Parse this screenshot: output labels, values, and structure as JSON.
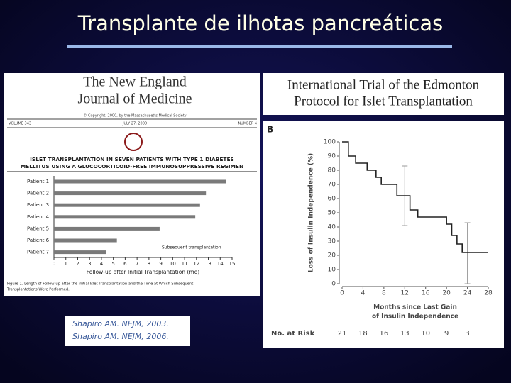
{
  "slide_title": "Transplante de ilhotas pancreáticas",
  "nejm": {
    "masthead": [
      "The New England",
      "Journal of Medicine"
    ],
    "copyright": "© Copyright, 2000, by the Massachusetts Medical Society",
    "volume": "VOLUME 343",
    "date": "JULY 27, 2000",
    "number": "NUMBER 4",
    "article_title": [
      "ISLET TRANSPLANTATION IN SEVEN PATIENTS WITH TYPE 1 DIABETES",
      "MELLITUS USING A GLUCOCORTICOID-FREE IMMUNOSUPPRESSIVE REGIMEN"
    ],
    "caption": [
      "Figure 1. Length of Follow-up after the Initial Islet Transplantation and the Time at Which Subsequent",
      "Transplantations Were Performed."
    ]
  },
  "citations": [
    "Shapiro AM. NEJM, 2003.",
    "Shapiro AM. NEJM, 2006."
  ],
  "trial_title": [
    "International Trial of the Edmonton",
    "Protocol for Islet Transplantation"
  ],
  "chart_data": [
    {
      "type": "hbar",
      "categories": [
        "Patient 1",
        "Patient 2",
        "Patient 3",
        "Patient 4",
        "Patient 5",
        "Patient 6",
        "Patient 7"
      ],
      "values": [
        14.5,
        12.8,
        12.3,
        11.9,
        8.9,
        5.3,
        4.4
      ],
      "color": "#7a7a7a",
      "xlim": [
        0,
        15
      ],
      "xticks": [
        0,
        1,
        2,
        3,
        4,
        5,
        6,
        7,
        8,
        9,
        10,
        11,
        12,
        13,
        14,
        15
      ],
      "xlabel": "Follow-up after Initial Transplantation (mo)",
      "annotation": "Subsequent transplantation"
    },
    {
      "type": "step",
      "panel": "B",
      "series": [
        {
          "color": "#222222",
          "x": [
            0,
            1.2,
            1.2,
            2.6,
            2.6,
            4.8,
            4.8,
            6.5,
            6.5,
            7.5,
            7.5,
            10.5,
            10.5,
            13,
            13,
            14.5,
            14.5,
            20,
            20,
            21,
            21,
            22,
            22,
            23,
            23,
            28
          ],
          "values": [
            100,
            100,
            90,
            90,
            85,
            85,
            80,
            80,
            75,
            75,
            70,
            70,
            62,
            62,
            52,
            52,
            47,
            47,
            42,
            42,
            34,
            34,
            28,
            28,
            22,
            22
          ]
        }
      ],
      "error_bars": [
        {
          "x": 12,
          "value": 62,
          "low": 41,
          "high": 83
        },
        {
          "x": 24,
          "value": 22,
          "low": 0,
          "high": 43
        }
      ],
      "error_color": "#9a9a9a",
      "xlim": [
        0,
        28
      ],
      "xticks": [
        0,
        4,
        8,
        12,
        16,
        20,
        24,
        28
      ],
      "ylim": [
        0,
        100
      ],
      "yticks": [
        0,
        10,
        20,
        30,
        40,
        50,
        60,
        70,
        80,
        90,
        100
      ],
      "ylabel": "Loss of Insulin Independence (%)",
      "xlabel": [
        "Months since Last Gain",
        "of Insulin Independence"
      ],
      "at_risk": {
        "label": "No. at Risk",
        "x": [
          0,
          4,
          8,
          12,
          16,
          20,
          24
        ],
        "values": [
          21,
          18,
          16,
          13,
          10,
          9,
          3
        ]
      }
    }
  ]
}
